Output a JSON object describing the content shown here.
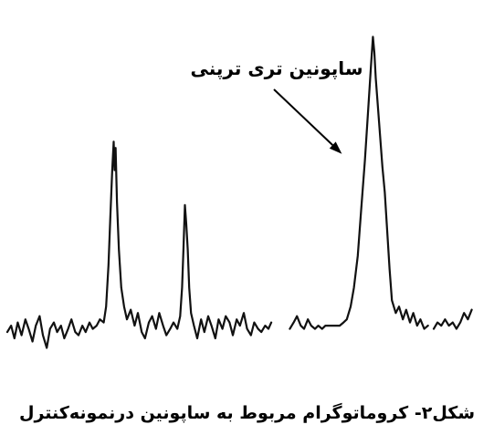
{
  "caption": "شکل۲- کروماتوگرام مربوط به ساپونین درنمونه‌کنترل",
  "colors": {
    "trace": "#111111",
    "text": "#000000",
    "background": "#ffffff"
  },
  "chart_data": {
    "type": "line",
    "title": "",
    "xlabel": "",
    "ylabel": "",
    "grid": false,
    "legend": "none",
    "xlim": [
      0,
      100
    ],
    "ylim": [
      0,
      100
    ],
    "annotations": [
      {
        "text": "ساپونین تری ترپنی",
        "points_to_peak": 3
      }
    ],
    "peaks": [
      {
        "index": 1,
        "x": 22.5,
        "height": 64
      },
      {
        "index": 2,
        "x": 37.5,
        "height": 44
      },
      {
        "index": 3,
        "x": 77.0,
        "height": 97
      }
    ],
    "series": [
      {
        "segments": [
          [
            [
              0.0,
              4
            ],
            [
              0.8,
              6
            ],
            [
              1.5,
              2
            ],
            [
              2.2,
              7
            ],
            [
              3.0,
              3
            ],
            [
              3.8,
              8
            ],
            [
              4.5,
              5
            ],
            [
              5.3,
              1
            ],
            [
              6.0,
              6
            ],
            [
              6.8,
              9
            ],
            [
              7.5,
              3
            ],
            [
              8.3,
              -1
            ],
            [
              9.0,
              5
            ],
            [
              9.8,
              7
            ],
            [
              10.5,
              4
            ],
            [
              11.3,
              6
            ],
            [
              12.0,
              2
            ],
            [
              12.8,
              5
            ],
            [
              13.5,
              8
            ],
            [
              14.3,
              4
            ],
            [
              15.0,
              3
            ],
            [
              15.8,
              6
            ],
            [
              16.5,
              4
            ],
            [
              17.3,
              7
            ],
            [
              18.0,
              5
            ],
            [
              18.8,
              6
            ],
            [
              19.5,
              8
            ],
            [
              20.3,
              7
            ],
            [
              20.8,
              12
            ],
            [
              21.3,
              25
            ],
            [
              21.7,
              40
            ],
            [
              22.1,
              55
            ],
            [
              22.4,
              64
            ],
            [
              22.6,
              55
            ],
            [
              22.8,
              62
            ],
            [
              23.1,
              45
            ],
            [
              23.5,
              30
            ],
            [
              24.0,
              18
            ],
            [
              24.6,
              12
            ],
            [
              25.2,
              8
            ],
            [
              26.0,
              11
            ],
            [
              26.8,
              6
            ],
            [
              27.5,
              10
            ],
            [
              28.3,
              4
            ],
            [
              29.0,
              2
            ],
            [
              29.8,
              7
            ],
            [
              30.5,
              9
            ],
            [
              31.3,
              5
            ],
            [
              32.0,
              10
            ],
            [
              32.8,
              6
            ],
            [
              33.5,
              3
            ],
            [
              34.3,
              5
            ],
            [
              35.0,
              7
            ],
            [
              35.8,
              5
            ],
            [
              36.4,
              9
            ],
            [
              36.8,
              18
            ],
            [
              37.1,
              30
            ],
            [
              37.4,
              44
            ],
            [
              37.7,
              38
            ],
            [
              38.0,
              30
            ],
            [
              38.3,
              18
            ],
            [
              38.7,
              10
            ],
            [
              39.3,
              6
            ],
            [
              40.0,
              2
            ],
            [
              40.8,
              8
            ],
            [
              41.5,
              4
            ],
            [
              42.3,
              9
            ],
            [
              43.0,
              6
            ],
            [
              43.8,
              2
            ],
            [
              44.5,
              8
            ],
            [
              45.3,
              5
            ],
            [
              46.0,
              9
            ],
            [
              46.8,
              7
            ],
            [
              47.5,
              3
            ],
            [
              48.3,
              8
            ],
            [
              49.0,
              6
            ],
            [
              49.8,
              10
            ],
            [
              50.5,
              5
            ],
            [
              51.3,
              3
            ],
            [
              52.0,
              7
            ],
            [
              52.8,
              5
            ],
            [
              53.5,
              4
            ],
            [
              54.3,
              6
            ],
            [
              55.0,
              5
            ],
            [
              55.6,
              7
            ]
          ],
          [
            [
              59.5,
              5
            ],
            [
              60.3,
              7
            ],
            [
              61.0,
              9
            ],
            [
              61.8,
              6
            ],
            [
              62.5,
              5
            ],
            [
              63.3,
              8
            ],
            [
              64.0,
              6
            ],
            [
              64.8,
              5
            ],
            [
              65.5,
              6
            ],
            [
              66.3,
              5
            ],
            [
              67.0,
              6
            ],
            [
              68.0,
              6
            ],
            [
              69.0,
              6
            ],
            [
              70.0,
              6
            ],
            [
              70.8,
              7
            ],
            [
              71.5,
              8
            ],
            [
              72.3,
              12
            ],
            [
              73.0,
              18
            ],
            [
              73.8,
              28
            ],
            [
              74.5,
              42
            ],
            [
              75.3,
              58
            ],
            [
              76.0,
              74
            ],
            [
              76.6,
              88
            ],
            [
              77.0,
              97
            ],
            [
              77.3,
              92
            ],
            [
              77.6,
              84
            ],
            [
              78.0,
              76
            ],
            [
              78.5,
              66
            ],
            [
              79.0,
              56
            ],
            [
              79.5,
              48
            ],
            [
              80.0,
              36
            ],
            [
              80.5,
              24
            ],
            [
              81.0,
              14
            ],
            [
              81.8,
              10
            ],
            [
              82.5,
              12
            ],
            [
              83.3,
              8
            ],
            [
              84.0,
              11
            ],
            [
              84.8,
              7
            ],
            [
              85.5,
              10
            ],
            [
              86.3,
              6
            ],
            [
              87.0,
              8
            ],
            [
              87.8,
              5
            ],
            [
              88.6,
              6
            ]
          ],
          [
            [
              89.8,
              5
            ],
            [
              90.6,
              7
            ],
            [
              91.4,
              6
            ],
            [
              92.2,
              8
            ],
            [
              93.0,
              6
            ],
            [
              93.8,
              7
            ],
            [
              94.6,
              5
            ],
            [
              95.4,
              7
            ],
            [
              96.2,
              10
            ],
            [
              97.0,
              8
            ],
            [
              97.8,
              11
            ]
          ]
        ]
      }
    ]
  }
}
